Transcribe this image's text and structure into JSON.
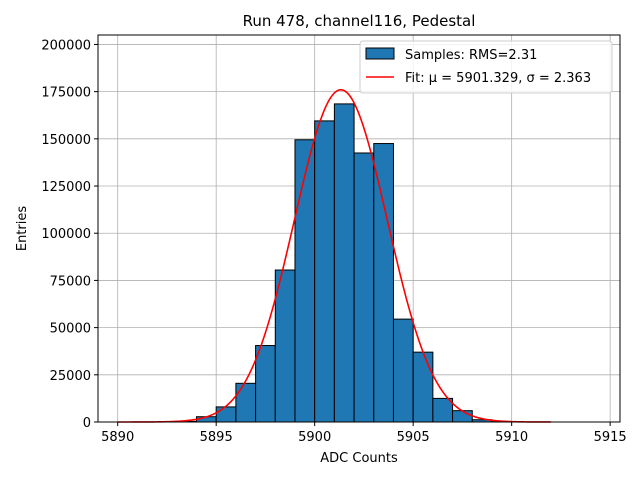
{
  "chart_data": {
    "type": "bar",
    "title": "Run 478, channel116, Pedestal",
    "xlabel": "ADC Counts",
    "ylabel": "Entries",
    "xlim": [
      5889,
      5915.5
    ],
    "ylim": [
      0,
      205000
    ],
    "xticks": [
      5890,
      5895,
      5900,
      5905,
      5910,
      5915
    ],
    "yticks": [
      0,
      25000,
      50000,
      75000,
      100000,
      125000,
      150000,
      175000,
      200000
    ],
    "grid": true,
    "legend_position": "top-right",
    "histogram": {
      "name": "Samples: RMS=2.31",
      "color": "#1f77b4",
      "edgecolor": "#000000",
      "bins": [
        {
          "x0": 5892,
          "x1": 5893,
          "count": 50
        },
        {
          "x0": 5893,
          "x1": 5894,
          "count": 300
        },
        {
          "x0": 5894,
          "x1": 5895,
          "count": 2800
        },
        {
          "x0": 5895,
          "x1": 5896,
          "count": 8000
        },
        {
          "x0": 5896,
          "x1": 5897,
          "count": 20500
        },
        {
          "x0": 5897,
          "x1": 5898,
          "count": 40500
        },
        {
          "x0": 5898,
          "x1": 5899,
          "count": 80500
        },
        {
          "x0": 5899,
          "x1": 5900,
          "count": 149500
        },
        {
          "x0": 5900,
          "x1": 5901,
          "count": 159500
        },
        {
          "x0": 5901,
          "x1": 5902,
          "count": 168500
        },
        {
          "x0": 5902,
          "x1": 5903,
          "count": 142500
        },
        {
          "x0": 5903,
          "x1": 5904,
          "count": 147500
        },
        {
          "x0": 5904,
          "x1": 5905,
          "count": 54500
        },
        {
          "x0": 5905,
          "x1": 5906,
          "count": 37000
        },
        {
          "x0": 5906,
          "x1": 5907,
          "count": 12500
        },
        {
          "x0": 5907,
          "x1": 5908,
          "count": 6000
        },
        {
          "x0": 5908,
          "x1": 5909,
          "count": 1200
        },
        {
          "x0": 5909,
          "x1": 5910,
          "count": 200
        }
      ]
    },
    "fit": {
      "name": "Fit: μ = 5901.329, σ = 2.363",
      "color": "#ff0000",
      "mu": 5901.329,
      "sigma": 2.363,
      "amplitude": 176000,
      "x_range": [
        5890,
        5912
      ]
    }
  }
}
